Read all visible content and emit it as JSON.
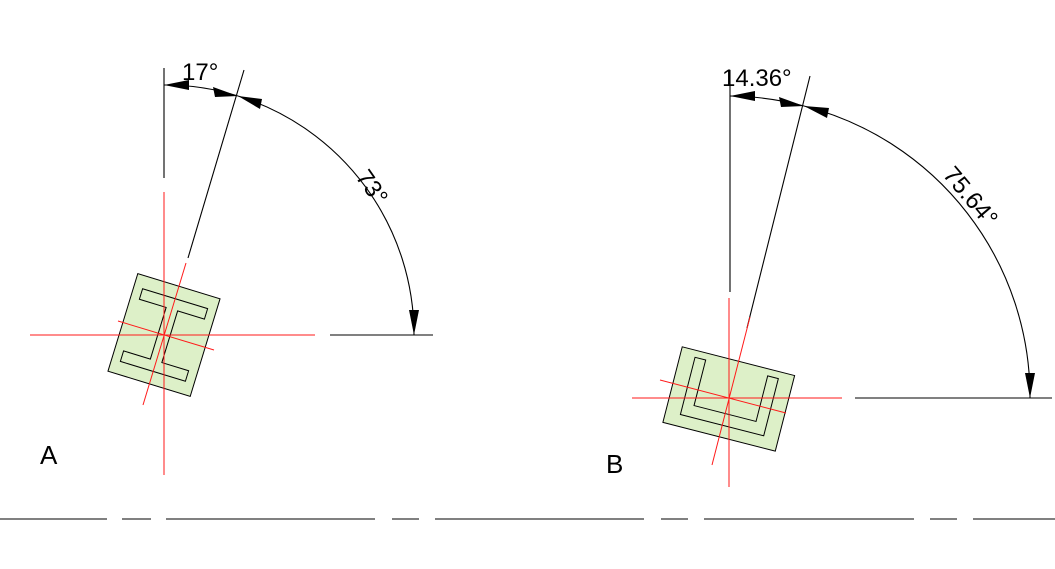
{
  "diagram": {
    "panel_a": {
      "label": "A",
      "small_angle": "17°",
      "large_angle": "73°"
    },
    "panel_b": {
      "label": "B",
      "small_angle": "14.36°",
      "large_angle": "75.64°"
    },
    "colors": {
      "beam_fill": "#ddf0c8",
      "axis_red": "#ff1a1a",
      "line": "#000000",
      "background": "#ffffff"
    }
  }
}
